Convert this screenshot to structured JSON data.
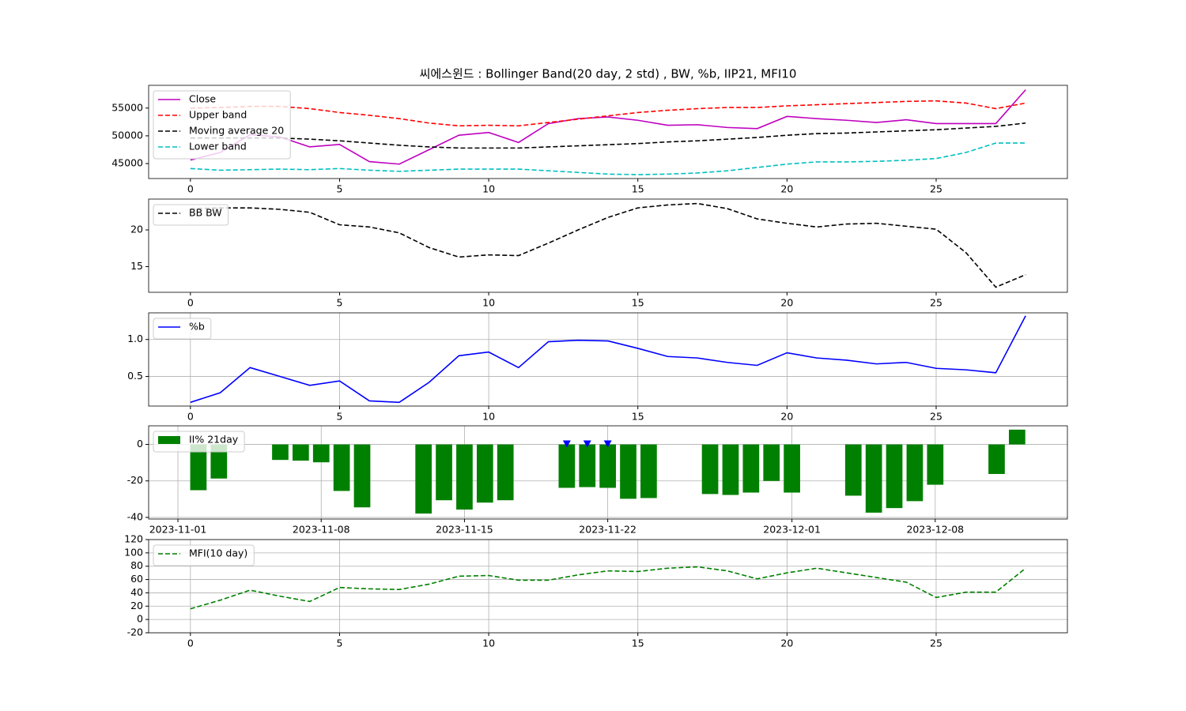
{
  "chart_data": [
    {
      "type": "line",
      "title": "씨에스윈드 : Bollinger Band(20 day, 2 std) , BW, %b, IIP21, MFI10",
      "x": [
        0,
        1,
        2,
        3,
        4,
        5,
        6,
        7,
        8,
        9,
        10,
        11,
        12,
        13,
        14,
        15,
        16,
        17,
        18,
        19,
        20,
        21,
        22,
        23,
        24,
        25,
        26,
        27,
        28
      ],
      "series": [
        {
          "name": "Close",
          "color": "#bf00bf",
          "linestyle": "solid",
          "values": [
            45630,
            47000,
            50200,
            49800,
            48000,
            48450,
            45350,
            44900,
            47500,
            50100,
            50600,
            48800,
            52200,
            53100,
            53400,
            52800,
            51900,
            52000,
            51500,
            51300,
            53500,
            53100,
            52800,
            52400,
            52900,
            52200,
            52200,
            52200,
            58300
          ]
        },
        {
          "name": "Upper band",
          "color": "#ff0000",
          "linestyle": "dashed",
          "values": [
            55000,
            55100,
            55300,
            55300,
            54900,
            54200,
            53700,
            53100,
            52300,
            51800,
            51900,
            51800,
            52400,
            53000,
            53600,
            54200,
            54600,
            54900,
            55100,
            55100,
            55400,
            55600,
            55800,
            56000,
            56200,
            56300,
            55900,
            54900,
            55900
          ]
        },
        {
          "name": "Moving average 20",
          "color": "#000000",
          "linestyle": "dashed",
          "values": [
            49600,
            49600,
            49600,
            49600,
            49400,
            49100,
            48700,
            48300,
            48000,
            47800,
            47800,
            47800,
            48000,
            48200,
            48400,
            48600,
            48900,
            49100,
            49400,
            49700,
            50100,
            50400,
            50500,
            50700,
            50900,
            51100,
            51400,
            51700,
            52300
          ]
        },
        {
          "name": "Lower band",
          "color": "#00bfbf",
          "linestyle": "dashed",
          "values": [
            44100,
            43800,
            43900,
            44000,
            43900,
            44100,
            43800,
            43600,
            43800,
            44000,
            44000,
            44000,
            43700,
            43400,
            43100,
            43000,
            43100,
            43300,
            43700,
            44300,
            44900,
            45300,
            45300,
            45400,
            45600,
            45900,
            47000,
            48700,
            48700
          ]
        }
      ],
      "xlim": [
        -1.4,
        29.4
      ],
      "xticks": [
        0,
        5,
        10,
        15,
        20,
        25
      ],
      "ylim": [
        42300,
        59100
      ],
      "yticks": [
        45000,
        50000,
        55000
      ],
      "grid": false,
      "legend": "upper left"
    },
    {
      "type": "line",
      "x": [
        0,
        1,
        2,
        3,
        4,
        5,
        6,
        7,
        8,
        9,
        10,
        11,
        12,
        13,
        14,
        15,
        16,
        17,
        18,
        19,
        20,
        21,
        22,
        23,
        24,
        25,
        26,
        27,
        28
      ],
      "series": [
        {
          "name": "BB BW",
          "color": "#000000",
          "linestyle": "dashed",
          "values": [
            22.9,
            23.0,
            23.0,
            22.8,
            22.4,
            20.7,
            20.4,
            19.6,
            17.6,
            16.3,
            16.6,
            16.5,
            18.2,
            20.0,
            21.7,
            23.0,
            23.4,
            23.6,
            22.9,
            21.5,
            20.9,
            20.4,
            20.8,
            20.9,
            20.5,
            20.1,
            16.9,
            12.2,
            13.9
          ]
        }
      ],
      "xlim": [
        -1.4,
        29.4
      ],
      "xticks": [
        0,
        5,
        10,
        15,
        20,
        25
      ],
      "ylim": [
        11.5,
        24.2
      ],
      "yticks": [
        15,
        20
      ],
      "grid": false,
      "legend": "upper left"
    },
    {
      "type": "line",
      "x": [
        0,
        1,
        2,
        3,
        4,
        5,
        6,
        7,
        8,
        9,
        10,
        11,
        12,
        13,
        14,
        15,
        16,
        17,
        18,
        19,
        20,
        21,
        22,
        23,
        24,
        25,
        26,
        27,
        28
      ],
      "series": [
        {
          "name": "%b",
          "color": "#0000ff",
          "linestyle": "solid",
          "values": [
            0.15,
            0.28,
            0.62,
            0.5,
            0.38,
            0.44,
            0.17,
            0.15,
            0.42,
            0.78,
            0.83,
            0.62,
            0.97,
            0.99,
            0.98,
            0.88,
            0.77,
            0.75,
            0.69,
            0.65,
            0.82,
            0.75,
            0.72,
            0.67,
            0.69,
            0.61,
            0.59,
            0.55,
            1.32
          ]
        }
      ],
      "xlim": [
        -1.4,
        29.4
      ],
      "xticks": [
        0,
        5,
        10,
        15,
        20,
        25
      ],
      "ylim": [
        0.1,
        1.36
      ],
      "yticks": [
        {
          "value": 0.5,
          "label": "0.5"
        },
        {
          "value": 1,
          "label": "1.0"
        }
      ],
      "grid": true,
      "legend": "upper left"
    },
    {
      "type": "bar",
      "x": [
        "2023-11-02",
        "2023-11-03",
        "2023-11-06",
        "2023-11-07",
        "2023-11-08",
        "2023-11-09",
        "2023-11-10",
        "2023-11-13",
        "2023-11-14",
        "2023-11-15",
        "2023-11-16",
        "2023-11-17",
        "2023-11-20",
        "2023-11-21",
        "2023-11-22",
        "2023-11-23",
        "2023-11-24",
        "2023-11-27",
        "2023-11-28",
        "2023-11-29",
        "2023-11-30",
        "2023-12-01",
        "2023-12-04",
        "2023-12-05",
        "2023-12-06",
        "2023-12-07",
        "2023-12-08",
        "2023-12-11",
        "2023-12-12"
      ],
      "series": [
        {
          "name": "II% 21day",
          "color": "#008000",
          "values": [
            -25.1,
            -18.7,
            -8.5,
            -8.9,
            -9.8,
            -25.5,
            -34.5,
            -37.9,
            -30.6,
            -35.7,
            -31.9,
            -30.6,
            -23.8,
            -23.4,
            -23.8,
            -29.8,
            -29.4,
            -27.2,
            -27.7,
            -26.4,
            -20,
            -26.4,
            -28.1,
            -37.4,
            -34.9,
            -31.1,
            -22.1,
            -16.2,
            8.1
          ]
        },
        {
          "marker": "v",
          "color": "#0000ff",
          "x": [
            "2023-11-20",
            "2023-11-21",
            "2023-11-22"
          ],
          "values": [
            0,
            0,
            0
          ]
        }
      ],
      "xlim": [
        "2023-10-30T13:40",
        "2023-12-14T11:00"
      ],
      "xticks": [
        "2023-11-01",
        "2023-11-08",
        "2023-11-15",
        "2023-11-22",
        "2023-12-01",
        "2023-12-08"
      ],
      "ylim": [
        -40.9,
        10.2
      ],
      "yticks": [
        -40,
        -20,
        0
      ],
      "grid": true,
      "legend": "upper left"
    },
    {
      "type": "line",
      "x": [
        0,
        1,
        2,
        3,
        4,
        5,
        6,
        7,
        8,
        9,
        10,
        11,
        12,
        13,
        14,
        15,
        16,
        17,
        18,
        19,
        20,
        21,
        22,
        23,
        24,
        25,
        26,
        27,
        28
      ],
      "series": [
        {
          "name": "MFI(10 day)",
          "color": "#008000",
          "linestyle": "dashed",
          "values": [
            16,
            29,
            44,
            35,
            27,
            48,
            46,
            45,
            53,
            65,
            66,
            59,
            59,
            67,
            73,
            72,
            77,
            79,
            73,
            61,
            70,
            77,
            70,
            63,
            56,
            33,
            41,
            41,
            77
          ]
        }
      ],
      "xlim": [
        -1.4,
        29.4
      ],
      "xticks": [
        0,
        5,
        10,
        15,
        20,
        25
      ],
      "ylim": [
        -20,
        120
      ],
      "yticks": [
        -20,
        0,
        20,
        40,
        60,
        80,
        100,
        120
      ],
      "grid": true,
      "legend": "upper left"
    }
  ]
}
